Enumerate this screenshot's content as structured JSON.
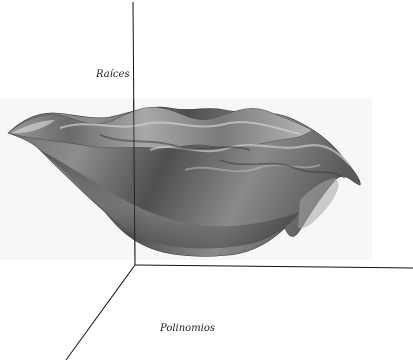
{
  "figure": {
    "vertical_axis_label": "Raíces",
    "depth_axis_label": "Polinomios",
    "colors": {
      "background": "#ffffff",
      "axis": "#111111",
      "surface_mid": "#8a8a8a",
      "surface_dark": "#3e3e3e",
      "surface_light": "#c8c8c8",
      "backdrop": "#f6f6f6"
    }
  }
}
